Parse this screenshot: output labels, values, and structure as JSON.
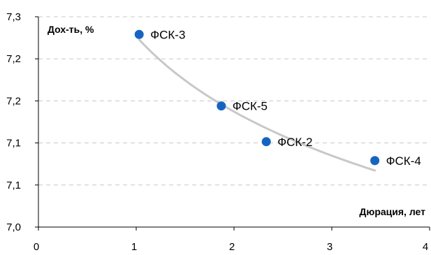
{
  "chart_data": {
    "type": "scatter",
    "xlabel": "Дюрация, лет",
    "ylabel": "Дох-ть, %",
    "xlim": [
      0,
      4
    ],
    "ylim": [
      0,
      5
    ],
    "x_ticks": [
      {
        "value": 0,
        "label": "0"
      },
      {
        "value": 1,
        "label": "1"
      },
      {
        "value": 2,
        "label": "2"
      },
      {
        "value": 3,
        "label": "3"
      },
      {
        "value": 4,
        "label": "4"
      }
    ],
    "y_ticks": [
      {
        "value": 0,
        "label": "7,0"
      },
      {
        "value": 1,
        "label": "7,1"
      },
      {
        "value": 2,
        "label": "7,1"
      },
      {
        "value": 3,
        "label": "7,2"
      },
      {
        "value": 4,
        "label": "7,2"
      },
      {
        "value": 5,
        "label": "7,3"
      }
    ],
    "grid": {
      "horizontal": true,
      "style": "dashed"
    },
    "points": [
      {
        "label": "ФСК-3",
        "x": 1.03,
        "y": 4.58
      },
      {
        "label": "ФСК-5",
        "x": 1.87,
        "y": 2.88
      },
      {
        "label": "ФСК-2",
        "x": 2.33,
        "y": 2.03
      },
      {
        "label": "ФСК-4",
        "x": 3.44,
        "y": 1.58
      }
    ],
    "trendline": {
      "type": "logarithmic",
      "x_from": 1.03,
      "x_to": 3.44
    },
    "colors": {
      "points": "#1565c0",
      "trendline": "#c8c8c8",
      "axis": "#000000",
      "grid": "#c8c8c8"
    }
  }
}
